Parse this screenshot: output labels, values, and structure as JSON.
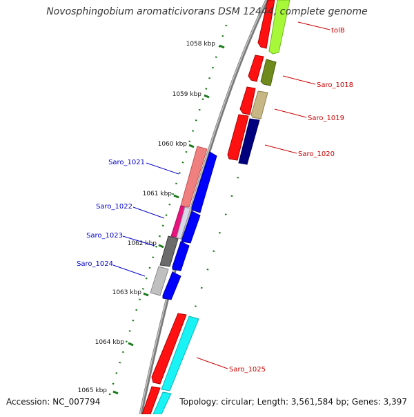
{
  "title": "Novosphingobium aromaticivorans DSM 12444, complete genome",
  "footer": {
    "accession": "Accession: NC_007794",
    "summary": "Topology: circular; Length: 3,561,584 bp; Genes: 3,397"
  },
  "ticks": [
    "1058 kbp",
    "1059 kbp",
    "1060 kbp",
    "1061 kbp",
    "1062 kbp",
    "1063 kbp",
    "1064 kbp",
    "1065 kbp"
  ],
  "genes_right": [
    "tolB",
    "Saro_1018",
    "Saro_1019",
    "Saro_1020",
    "Saro_1025"
  ],
  "genes_left": [
    "Saro_1021",
    "Saro_1022",
    "Saro_1023",
    "Saro_1024"
  ],
  "colors": {
    "forward_label": "#cc0000",
    "reverse_label": "#0000cc",
    "backbone": "#808080",
    "tick": "#1a7a1a"
  }
}
